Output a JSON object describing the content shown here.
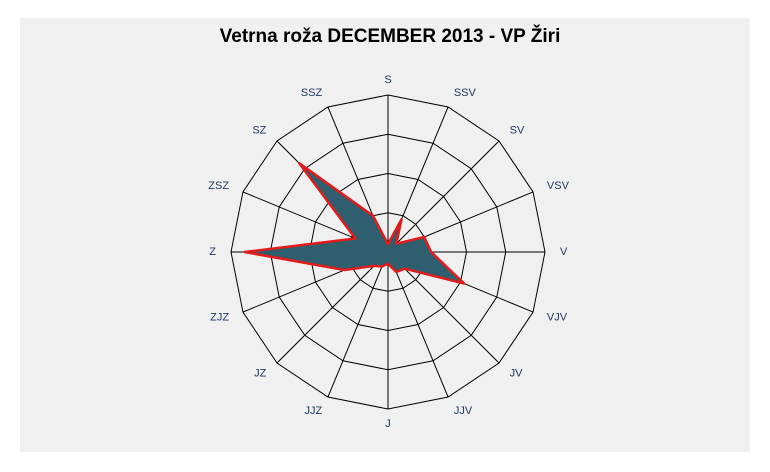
{
  "chart_data": {
    "type": "radar",
    "title": "Vetrna roža DECEMBER 2013 - VP Žiri",
    "categories": [
      "S",
      "SSV",
      "SV",
      "VSV",
      "V",
      "VJV",
      "JV",
      "JJV",
      "J",
      "JJZ",
      "JZ",
      "ZJZ",
      "Z",
      "ZSZ",
      "SZ",
      "SSZ"
    ],
    "series": [
      {
        "name": null,
        "color": "#2f5f6e",
        "edge_color": "#e31b1b",
        "values": [
          0.2,
          0.9,
          0.3,
          1.0,
          1.1,
          2.1,
          0.6,
          0.55,
          0.3,
          0.4,
          0.5,
          1.2,
          3.65,
          0.9,
          3.2,
          1.0
        ]
      }
    ],
    "ylim": [
      0,
      4
    ],
    "yticks": [
      1,
      2,
      3,
      4
    ],
    "grid": true
  }
}
